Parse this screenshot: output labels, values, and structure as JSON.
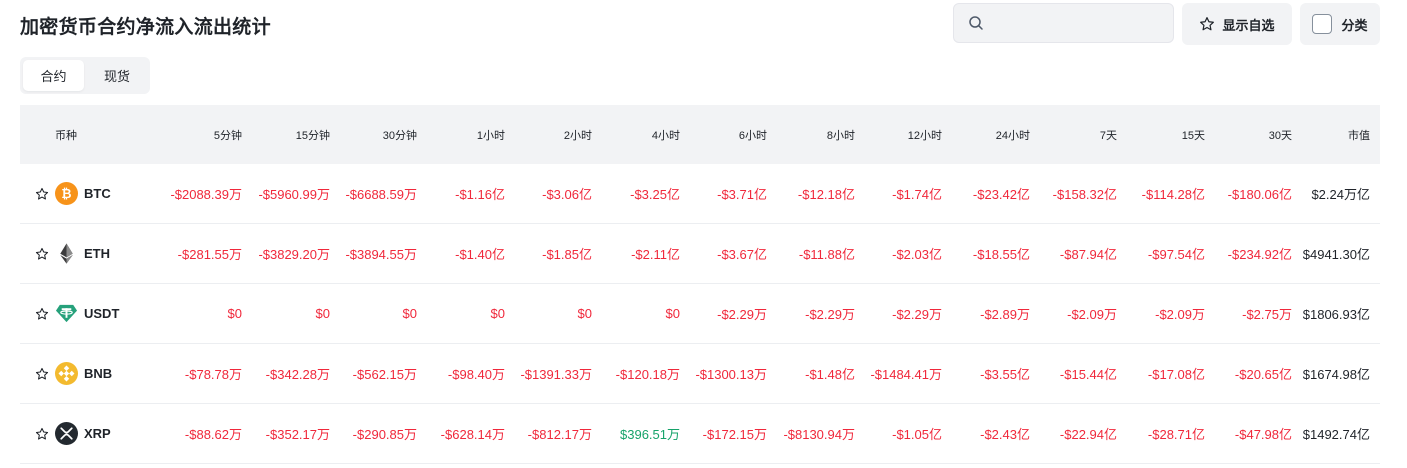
{
  "page": {
    "title": "加密货币合约净流入流出统计"
  },
  "search": {
    "placeholder": "",
    "value": ""
  },
  "toolbar": {
    "fav_label": "显示自选",
    "category_label": "分类"
  },
  "tabs": [
    {
      "label": "合约",
      "active": true
    },
    {
      "label": "现货",
      "active": false
    }
  ],
  "table": {
    "headers": [
      "币种",
      "5分钟",
      "15分钟",
      "30分钟",
      "1小时",
      "2小时",
      "4小时",
      "6小时",
      "8小时",
      "12小时",
      "24小时",
      "7天",
      "15天",
      "30天",
      "市值"
    ],
    "rows": [
      {
        "symbol": "BTC",
        "icon": "btc-logo",
        "values": [
          "-$2088.39万",
          "-$5960.99万",
          "-$6688.59万",
          "-$1.16亿",
          "-$3.06亿",
          "-$3.25亿",
          "-$3.71亿",
          "-$12.18亿",
          "-$1.74亿",
          "-$23.42亿",
          "-$158.32亿",
          "-$114.28亿",
          "-$180.06亿"
        ],
        "signs": [
          "neg",
          "neg",
          "neg",
          "neg",
          "neg",
          "neg",
          "neg",
          "neg",
          "neg",
          "neg",
          "neg",
          "neg",
          "neg"
        ],
        "market_cap": "$2.24万亿"
      },
      {
        "symbol": "ETH",
        "icon": "eth-logo",
        "values": [
          "-$281.55万",
          "-$3829.20万",
          "-$3894.55万",
          "-$1.40亿",
          "-$1.85亿",
          "-$2.11亿",
          "-$3.67亿",
          "-$11.88亿",
          "-$2.03亿",
          "-$18.55亿",
          "-$87.94亿",
          "-$97.54亿",
          "-$234.92亿"
        ],
        "signs": [
          "neg",
          "neg",
          "neg",
          "neg",
          "neg",
          "neg",
          "neg",
          "neg",
          "neg",
          "neg",
          "neg",
          "neg",
          "neg"
        ],
        "market_cap": "$4941.30亿"
      },
      {
        "symbol": "USDT",
        "icon": "usdt-logo",
        "values": [
          "$0",
          "$0",
          "$0",
          "$0",
          "$0",
          "$0",
          "-$2.29万",
          "-$2.29万",
          "-$2.29万",
          "-$2.89万",
          "-$2.09万",
          "-$2.09万",
          "-$2.75万"
        ],
        "signs": [
          "zero",
          "zero",
          "zero",
          "zero",
          "zero",
          "zero",
          "neg",
          "neg",
          "neg",
          "neg",
          "neg",
          "neg",
          "neg"
        ],
        "market_cap": "$1806.93亿"
      },
      {
        "symbol": "BNB",
        "icon": "bnb-logo",
        "values": [
          "-$78.78万",
          "-$342.28万",
          "-$562.15万",
          "-$98.40万",
          "-$1391.33万",
          "-$120.18万",
          "-$1300.13万",
          "-$1.48亿",
          "-$1484.41万",
          "-$3.55亿",
          "-$15.44亿",
          "-$17.08亿",
          "-$20.65亿"
        ],
        "signs": [
          "neg",
          "neg",
          "neg",
          "neg",
          "neg",
          "neg",
          "neg",
          "neg",
          "neg",
          "neg",
          "neg",
          "neg",
          "neg"
        ],
        "market_cap": "$1674.98亿"
      },
      {
        "symbol": "XRP",
        "icon": "xrp-logo",
        "values": [
          "-$88.62万",
          "-$352.17万",
          "-$290.85万",
          "-$628.14万",
          "-$812.17万",
          "$396.51万",
          "-$172.15万",
          "-$8130.94万",
          "-$1.05亿",
          "-$2.43亿",
          "-$22.94亿",
          "-$28.71亿",
          "-$47.98亿"
        ],
        "signs": [
          "neg",
          "neg",
          "neg",
          "neg",
          "neg",
          "pos",
          "neg",
          "neg",
          "neg",
          "neg",
          "neg",
          "neg",
          "neg"
        ],
        "market_cap": "$1492.74亿"
      }
    ]
  },
  "colors": {
    "negative": "#f0283b",
    "positive": "#16a36a",
    "btc": "#f7931a",
    "eth": "#3c3c3d",
    "usdt": "#26a17b",
    "bnb": "#f3ba2f",
    "xrp": "#23292f"
  }
}
